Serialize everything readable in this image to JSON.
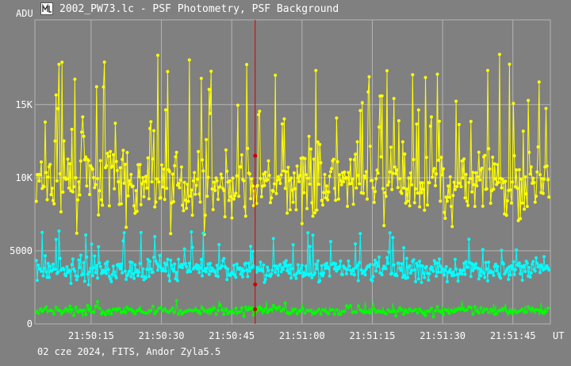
{
  "window": {
    "title": "2002_PW73.lc - PSF Photometry, PSF Background",
    "app_icon": "light-curve-app-icon"
  },
  "footer": {
    "info": "02 cze 2024, FITS, Andor Zyla5.5"
  },
  "colors": {
    "background": "#808080",
    "grid": "#b4b4b4",
    "cursor": "#cc0000",
    "series_yellow": "#ffff00",
    "series_cyan": "#00ffff",
    "series_green": "#00ff00"
  },
  "chart_data": {
    "type": "line",
    "title": "",
    "xlabel": "UT",
    "ylabel": "ADU",
    "grid": true,
    "legend": "none",
    "x_unit": "UT time",
    "x_range": [
      "21:50:03",
      "21:51:53"
    ],
    "ylim": [
      0,
      20800
    ],
    "y_ticks": [
      {
        "value": 0,
        "label": "0"
      },
      {
        "value": 5000,
        "label": "5000"
      },
      {
        "value": 10000,
        "label": "10K"
      },
      {
        "value": 15000,
        "label": "15K"
      }
    ],
    "x_ticks": [
      "21:50:15",
      "21:50:30",
      "21:50:45",
      "21:51:00",
      "21:51:15",
      "21:51:30",
      "21:51:45"
    ],
    "cursor_x": "21:50:50",
    "series": [
      {
        "color_key": "series_yellow",
        "baseline": 9500,
        "spread": 1600,
        "spike_max": 18500,
        "spike_prob": 0.13
      },
      {
        "color_key": "series_cyan",
        "baseline": 3700,
        "spread": 550,
        "spike_max": 6400,
        "spike_prob": 0.08
      },
      {
        "color_key": "series_green",
        "baseline": 900,
        "spread": 220,
        "spike_max": 1600,
        "spike_prob": 0.05
      }
    ]
  }
}
